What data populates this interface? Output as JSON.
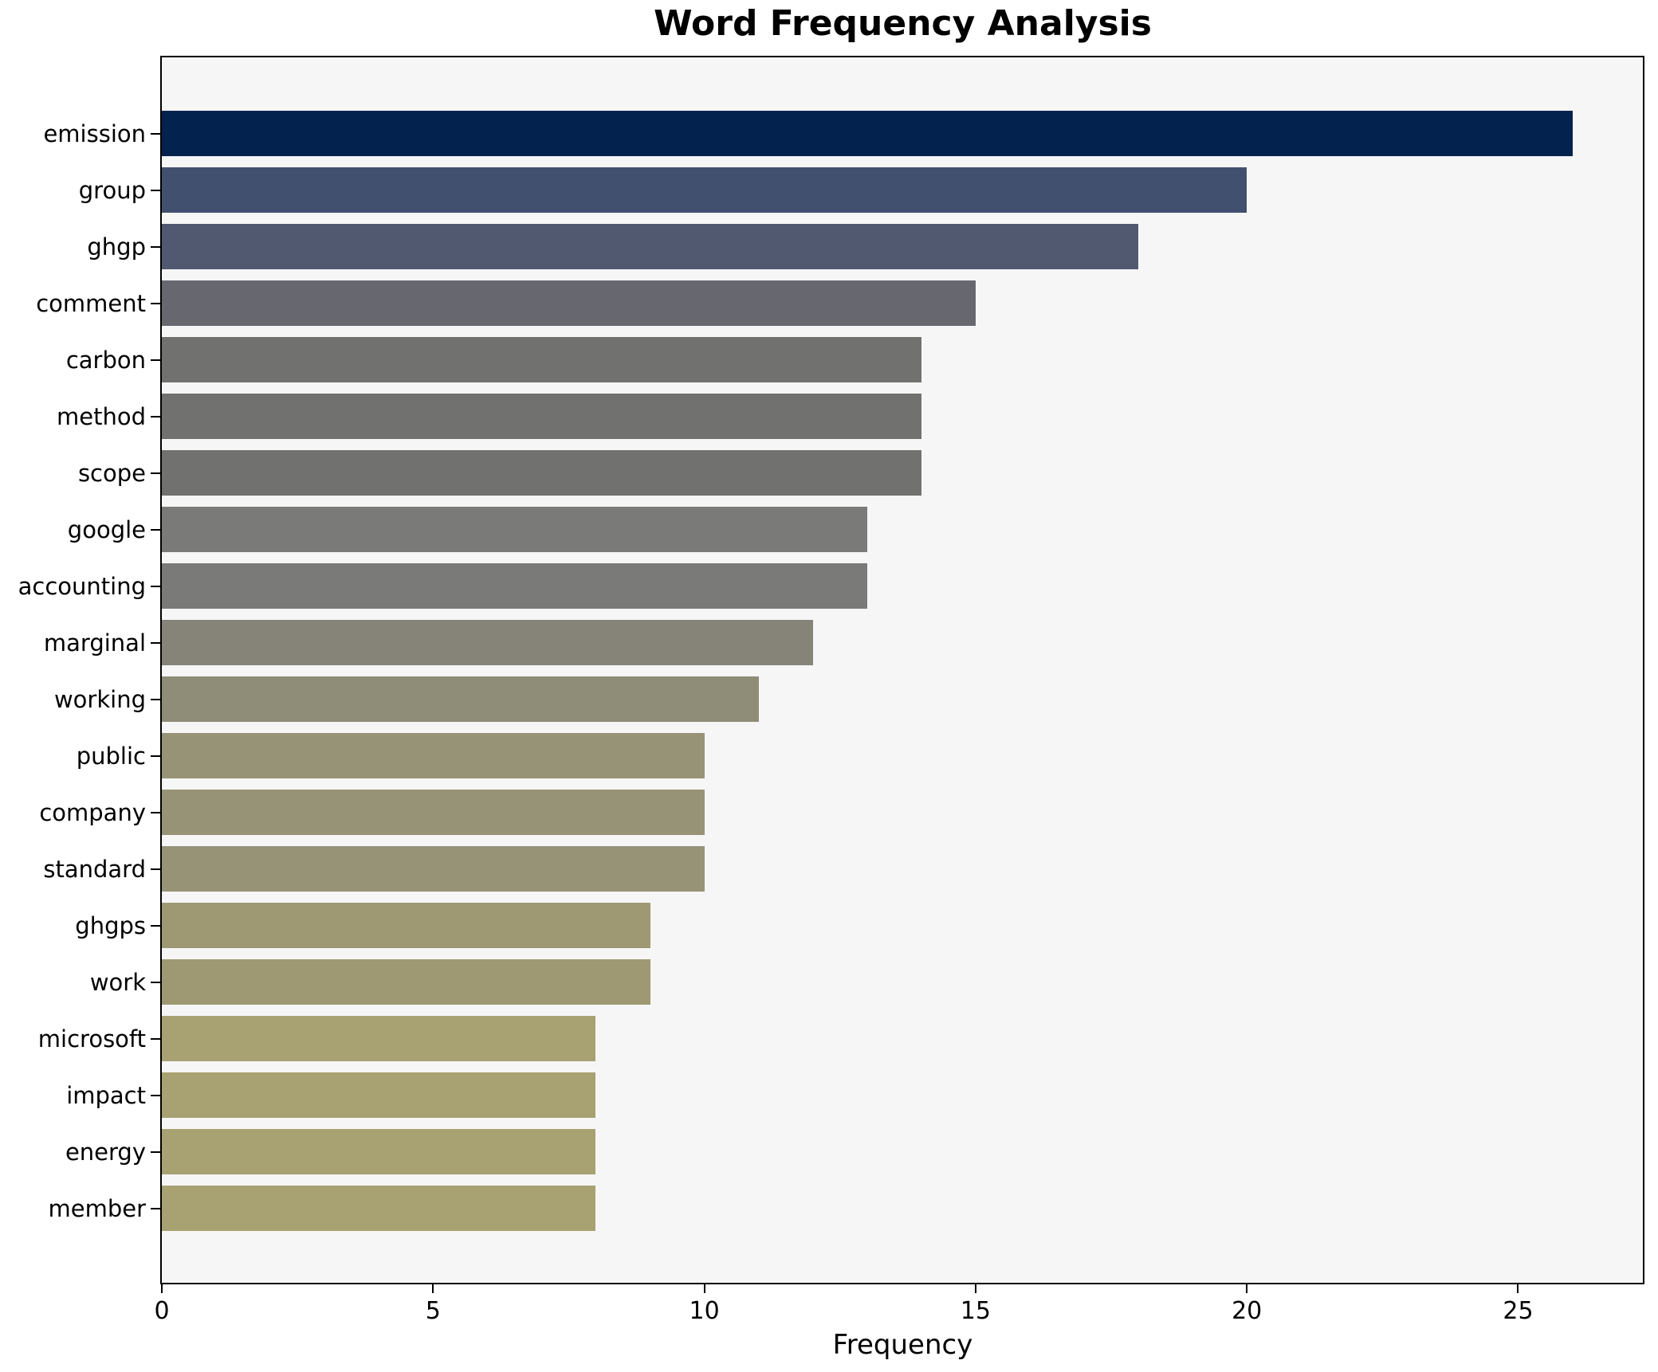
{
  "chart_data": {
    "type": "bar",
    "orientation": "horizontal",
    "title": "Word Frequency Analysis",
    "xlabel": "Frequency",
    "ylabel": "",
    "categories": [
      "emission",
      "group",
      "ghgp",
      "comment",
      "carbon",
      "method",
      "scope",
      "google",
      "accounting",
      "marginal",
      "working",
      "public",
      "company",
      "standard",
      "ghgps",
      "work",
      "microsoft",
      "impact",
      "energy",
      "member"
    ],
    "values": [
      26,
      20,
      18,
      15,
      14,
      14,
      14,
      13,
      13,
      12,
      11,
      10,
      10,
      10,
      9,
      9,
      8,
      8,
      8,
      8
    ],
    "bar_colors": [
      "#04224e",
      "#41506f",
      "#505970",
      "#67686f",
      "#717170",
      "#717170",
      "#717170",
      "#7a7a78",
      "#7a7a78",
      "#868478",
      "#8f8c77",
      "#979376",
      "#979376",
      "#979376",
      "#9e9973",
      "#9e9973",
      "#a8a171",
      "#a8a171",
      "#a8a171",
      "#a8a171"
    ],
    "xticks": [
      0,
      5,
      10,
      15,
      20,
      25
    ],
    "xlim": [
      0,
      27.3
    ],
    "grid": false,
    "legend": null,
    "colors": {
      "figure_background": "#ffffff",
      "plot_background": "#f6f6f7",
      "spine": "#000000",
      "text": "#000000"
    }
  }
}
